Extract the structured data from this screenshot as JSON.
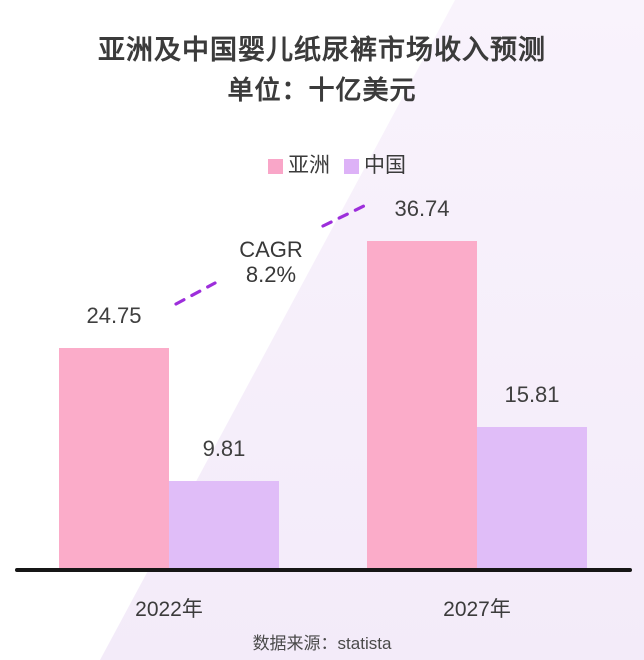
{
  "page": {
    "title": "亚洲及中国婴儿纸尿裤市场收入预测",
    "subtitle": "单位：十亿美元",
    "source": "数据来源：statista"
  },
  "chart_data": {
    "type": "bar",
    "title": "亚洲及中国婴儿纸尿裤市场收入预测",
    "subtitle": "单位：十亿美元",
    "unit": "十亿美元",
    "categories": [
      "2022年",
      "2027年"
    ],
    "series": [
      {
        "name": "亚洲",
        "color": "#FBACC9",
        "values": [
          24.75,
          36.74
        ]
      },
      {
        "name": "中国",
        "color": "#E0BDF8",
        "values": [
          9.81,
          15.81
        ]
      }
    ],
    "annotation": {
      "line1": "CAGR",
      "line2": "8.2%"
    },
    "ylim": [
      0,
      40
    ],
    "grid": false,
    "legend_position": "top",
    "source": "数据来源：statista"
  },
  "colors": {
    "asia_bar": "#FBACC9",
    "china_bar": "#E0BDF8",
    "legend_asia": "#F9A6C8",
    "legend_china": "#DDB2F7",
    "dashed_line": "#9D2EDB",
    "axis_line": "#161616",
    "background_band_top": "#F9F3FC",
    "background_band_bottom": "#F3EBF9",
    "text": "#3B3B3B"
  }
}
